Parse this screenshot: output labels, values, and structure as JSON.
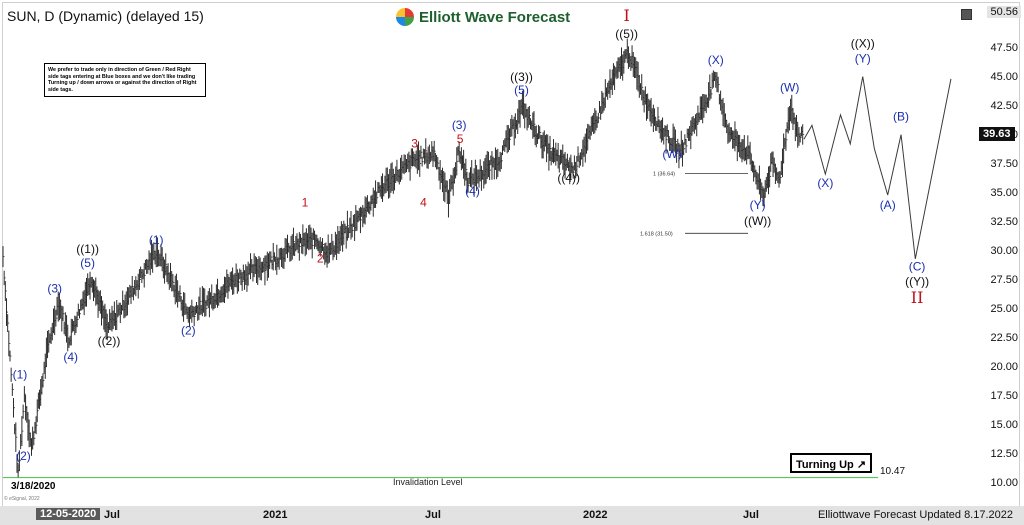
{
  "symbol_title": "SUN, D (Dynamic) (delayed 15)",
  "logo_text": "Elliott Wave Forecast",
  "note_text": "We prefer to trade only in direction of Green / Red Right side tags entering at Blue boxes and we don't like trading Turning up / down arrows or against the direction of Right side tags.",
  "top_price_label": "50.56",
  "current_price_label": "39.63",
  "current_date_label": "12-05-2020",
  "start_date_label": "3/18/2020",
  "invalidation_text": "Invalidation Level",
  "invalidation_value": "10.47",
  "turning_up_text": "Turning Up",
  "footer_text": "Elliottwave Forecast Updated 8.17.2022",
  "brand_small": "© eSignal, 2022",
  "fib_labels": [
    "1 (36.64)",
    "1.618 (31.50)"
  ],
  "colors": {
    "blue": "#1a2fb0",
    "red": "#c0111b",
    "green_line": "#59c95c",
    "bars": "#2b2b2b",
    "projection": "#3a3a3a"
  },
  "chart_data": {
    "type": "line",
    "title": "SUN, D (Dynamic) (delayed 15)",
    "ylim": [
      10,
      50.56
    ],
    "y_ticks": [
      10.0,
      12.5,
      15.0,
      17.5,
      20.0,
      22.5,
      25.0,
      27.5,
      30.0,
      32.5,
      35.0,
      37.5,
      40.0,
      42.5,
      45.0,
      47.5
    ],
    "x_labels": [
      "12-05-2020",
      "Jul",
      "2021",
      "Jul",
      "2022",
      "Jul"
    ],
    "invalidation_level": 10.47,
    "fib_levels": [
      36.64,
      31.5
    ],
    "price_path": [
      {
        "d": "2020-03-01",
        "v": 29.5
      },
      {
        "d": "2020-03-18",
        "v": 10.6
      },
      {
        "d": "2020-03-25",
        "v": 17.6
      },
      {
        "d": "2020-04-02",
        "v": 13.0
      },
      {
        "d": "2020-04-20",
        "v": 21.5
      },
      {
        "d": "2020-05-02",
        "v": 25.6
      },
      {
        "d": "2020-05-14",
        "v": 22.4
      },
      {
        "d": "2020-06-08",
        "v": 27.7
      },
      {
        "d": "2020-06-26",
        "v": 23.3
      },
      {
        "d": "2020-07-20",
        "v": 26.0
      },
      {
        "d": "2020-08-20",
        "v": 30.0
      },
      {
        "d": "2020-09-25",
        "v": 24.5
      },
      {
        "d": "2020-10-20",
        "v": 25.8
      },
      {
        "d": "2020-11-15",
        "v": 27.5
      },
      {
        "d": "2020-12-20",
        "v": 28.8
      },
      {
        "d": "2021-01-25",
        "v": 30.5
      },
      {
        "d": "2021-02-15",
        "v": 31.0
      },
      {
        "d": "2021-03-01",
        "v": 29.8
      },
      {
        "d": "2021-04-01",
        "v": 32.5
      },
      {
        "d": "2021-05-01",
        "v": 35.5
      },
      {
        "d": "2021-06-05",
        "v": 37.8
      },
      {
        "d": "2021-06-28",
        "v": 38.4
      },
      {
        "d": "2021-07-14",
        "v": 34.5
      },
      {
        "d": "2021-07-26",
        "v": 38.6
      },
      {
        "d": "2021-08-05",
        "v": 36.0
      },
      {
        "d": "2021-08-20",
        "v": 36.6
      },
      {
        "d": "2021-09-10",
        "v": 38.0
      },
      {
        "d": "2021-10-05",
        "v": 42.4
      },
      {
        "d": "2021-10-18",
        "v": 40.5
      },
      {
        "d": "2021-11-05",
        "v": 38.4
      },
      {
        "d": "2021-12-01",
        "v": 37.0
      },
      {
        "d": "2021-12-20",
        "v": 40.0
      },
      {
        "d": "2022-01-10",
        "v": 44.0
      },
      {
        "d": "2022-02-01",
        "v": 47.1
      },
      {
        "d": "2022-02-20",
        "v": 43.0
      },
      {
        "d": "2022-03-10",
        "v": 40.5
      },
      {
        "d": "2022-03-31",
        "v": 38.5
      },
      {
        "d": "2022-04-20",
        "v": 41.5
      },
      {
        "d": "2022-05-10",
        "v": 44.8
      },
      {
        "d": "2022-05-25",
        "v": 40.0
      },
      {
        "d": "2022-06-15",
        "v": 38.5
      },
      {
        "d": "2022-06-28",
        "v": 35.6
      },
      {
        "d": "2022-07-02",
        "v": 34.6
      },
      {
        "d": "2022-07-12",
        "v": 37.5
      },
      {
        "d": "2022-07-20",
        "v": 36.0
      },
      {
        "d": "2022-08-02",
        "v": 42.5
      },
      {
        "d": "2022-08-10",
        "v": 40.0
      },
      {
        "d": "2022-08-17",
        "v": 39.63
      }
    ],
    "projection_path": [
      {
        "d": "2022-08-17",
        "v": 39.6
      },
      {
        "d": "2022-08-26",
        "v": 40.8
      },
      {
        "d": "2022-09-10",
        "v": 36.6
      },
      {
        "d": "2022-09-27",
        "v": 41.7
      },
      {
        "d": "2022-10-08",
        "v": 39.2
      },
      {
        "d": "2022-10-22",
        "v": 45.0
      },
      {
        "d": "2022-11-04",
        "v": 38.8
      },
      {
        "d": "2022-11-19",
        "v": 34.8
      },
      {
        "d": "2022-12-04",
        "v": 40.0
      },
      {
        "d": "2022-12-20",
        "v": 29.3
      },
      {
        "d": "2023-01-29",
        "v": 44.8
      }
    ],
    "wave_labels": [
      {
        "text": "(1)",
        "d": "2020-03-20",
        "v": 19.0,
        "color": "blue"
      },
      {
        "text": "(2)",
        "d": "2020-03-24",
        "v": 12.0,
        "color": "blue"
      },
      {
        "text": "(3)",
        "d": "2020-04-28",
        "v": 26.4,
        "color": "blue"
      },
      {
        "text": "(4)",
        "d": "2020-05-16",
        "v": 20.5,
        "color": "blue"
      },
      {
        "text": "(5)",
        "d": "2020-06-04",
        "v": 28.6,
        "color": "blue"
      },
      {
        "text": "((1))",
        "d": "2020-06-04",
        "v": 29.8,
        "color": "black"
      },
      {
        "text": "((2))",
        "d": "2020-06-28",
        "v": 21.9,
        "color": "black"
      },
      {
        "text": "(1)",
        "d": "2020-08-20",
        "v": 30.6,
        "color": "blue"
      },
      {
        "text": "(2)",
        "d": "2020-09-25",
        "v": 22.8,
        "color": "blue"
      },
      {
        "text": "1",
        "d": "2021-02-03",
        "v": 33.8,
        "color": "red"
      },
      {
        "text": "2",
        "d": "2021-02-20",
        "v": 29.0,
        "color": "red"
      },
      {
        "text": "3",
        "d": "2021-06-06",
        "v": 38.9,
        "color": "red"
      },
      {
        "text": "4",
        "d": "2021-06-16",
        "v": 33.8,
        "color": "red"
      },
      {
        "text": "5",
        "d": "2021-07-27",
        "v": 39.3,
        "color": "red"
      },
      {
        "text": "(3)",
        "d": "2021-07-26",
        "v": 40.5,
        "color": "blue"
      },
      {
        "text": "(4)",
        "d": "2021-08-10",
        "v": 34.8,
        "color": "blue"
      },
      {
        "text": "(5)",
        "d": "2021-10-04",
        "v": 43.5,
        "color": "blue"
      },
      {
        "text": "((3))",
        "d": "2021-10-04",
        "v": 44.6,
        "color": "black"
      },
      {
        "text": "((4))",
        "d": "2021-11-26",
        "v": 35.9,
        "color": "black"
      },
      {
        "text": "I",
        "d": "2022-01-30",
        "v": 49.8,
        "color": "red"
      },
      {
        "text": "((5))",
        "d": "2022-01-30",
        "v": 48.3,
        "color": "black"
      },
      {
        "text": "(W)",
        "d": "2022-03-22",
        "v": 38.0,
        "color": "blue"
      },
      {
        "text": "(X)",
        "d": "2022-05-10",
        "v": 46.1,
        "color": "blue"
      },
      {
        "text": "(Y)",
        "d": "2022-06-26",
        "v": 33.6,
        "color": "blue"
      },
      {
        "text": "((W))",
        "d": "2022-06-26",
        "v": 32.2,
        "color": "black"
      },
      {
        "text": "(W)",
        "d": "2022-08-01",
        "v": 43.7,
        "color": "blue"
      },
      {
        "text": "(X)",
        "d": "2022-09-10",
        "v": 35.5,
        "color": "blue"
      },
      {
        "text": "((X))",
        "d": "2022-10-22",
        "v": 47.5,
        "color": "black"
      },
      {
        "text": "(Y)",
        "d": "2022-10-22",
        "v": 46.2,
        "color": "blue"
      },
      {
        "text": "(A)",
        "d": "2022-11-19",
        "v": 33.6,
        "color": "blue"
      },
      {
        "text": "(B)",
        "d": "2022-12-04",
        "v": 41.2,
        "color": "blue"
      },
      {
        "text": "(C)",
        "d": "2022-12-22",
        "v": 28.3,
        "color": "blue"
      },
      {
        "text": "((Y))",
        "d": "2022-12-22",
        "v": 27.0,
        "color": "black"
      },
      {
        "text": "II",
        "d": "2022-12-22",
        "v": 25.5,
        "color": "red"
      }
    ]
  }
}
